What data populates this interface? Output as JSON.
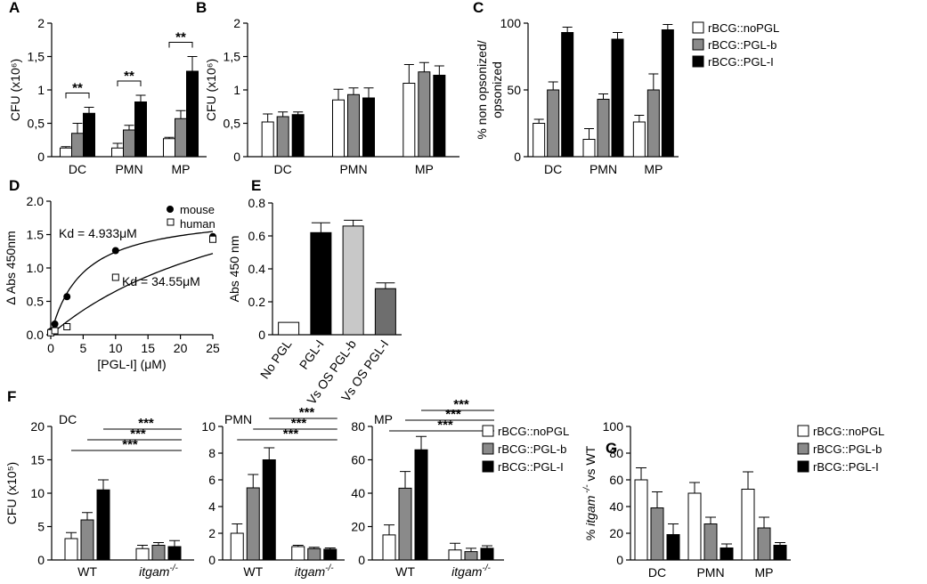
{
  "figure": {
    "colors": {
      "noPGL": "#ffffff",
      "PGLb": "#8a8a8a",
      "PGLI": "#000000",
      "OSb": "#c8c8c8",
      "OSI": "#6e6e6e"
    }
  },
  "chart_data": [
    {
      "id": "A",
      "type": "bar",
      "panel_label": "A",
      "ylabel": "CFU (x10⁶)",
      "ylim": [
        0,
        2
      ],
      "yticks": [
        0,
        0.5,
        1,
        1.5,
        2
      ],
      "ytick_labels": [
        "0",
        "0,5",
        "1",
        "1,5",
        "2"
      ],
      "categories": [
        "DC",
        "PMN",
        "MP"
      ],
      "series": [
        {
          "name": "rBCG::noPGL",
          "color": "#ffffff",
          "values": [
            0.13,
            0.13,
            0.27
          ],
          "errors": [
            0.02,
            0.07,
            0.02
          ]
        },
        {
          "name": "rBCG::PGL-b",
          "color": "#8a8a8a",
          "values": [
            0.35,
            0.4,
            0.57
          ],
          "errors": [
            0.15,
            0.07,
            0.12
          ]
        },
        {
          "name": "rBCG::PGL-I",
          "color": "#000000",
          "values": [
            0.65,
            0.82,
            1.28
          ],
          "errors": [
            0.09,
            0.1,
            0.22
          ]
        }
      ],
      "significance": [
        {
          "cat": 0,
          "from": 0,
          "to": 2,
          "label": "**"
        },
        {
          "cat": 1,
          "from": 0,
          "to": 2,
          "label": "**"
        },
        {
          "cat": 2,
          "from": 0,
          "to": 2,
          "label": "**"
        }
      ]
    },
    {
      "id": "B",
      "type": "bar",
      "panel_label": "B",
      "ylabel": "CFU (x10⁶)",
      "ylim": [
        0,
        2
      ],
      "yticks": [
        0,
        0.5,
        1,
        1.5,
        2
      ],
      "ytick_labels": [
        "0",
        "0,5",
        "1",
        "1,5",
        "2"
      ],
      "categories": [
        "DC",
        "PMN",
        "MP"
      ],
      "series": [
        {
          "name": "rBCG::noPGL",
          "color": "#ffffff",
          "values": [
            0.52,
            0.85,
            1.1
          ],
          "errors": [
            0.12,
            0.16,
            0.28
          ]
        },
        {
          "name": "rBCG::PGL-b",
          "color": "#8a8a8a",
          "values": [
            0.6,
            0.93,
            1.27
          ],
          "errors": [
            0.07,
            0.1,
            0.14
          ]
        },
        {
          "name": "rBCG::PGL-I",
          "color": "#000000",
          "values": [
            0.63,
            0.88,
            1.22
          ],
          "errors": [
            0.04,
            0.15,
            0.14
          ]
        }
      ]
    },
    {
      "id": "C",
      "type": "bar",
      "panel_label": "C",
      "ylabel": "% non opsonized/ opsonized",
      "ylabel_lines": [
        "% non opsonized/",
        "opsonized"
      ],
      "ylim": [
        0,
        100
      ],
      "yticks": [
        0,
        50,
        100
      ],
      "ytick_labels": [
        "0",
        "50",
        "100"
      ],
      "categories": [
        "DC",
        "PMN",
        "MP"
      ],
      "series": [
        {
          "name": "rBCG::noPGL",
          "color": "#ffffff",
          "values": [
            25,
            13,
            26
          ],
          "errors": [
            3,
            8,
            5
          ]
        },
        {
          "name": "rBCG::PGL-b",
          "color": "#8a8a8a",
          "values": [
            50,
            43,
            50
          ],
          "errors": [
            6,
            4,
            12
          ]
        },
        {
          "name": "rBCG::PGL-I",
          "color": "#000000",
          "values": [
            93,
            88,
            95
          ],
          "errors": [
            4,
            5,
            4
          ]
        }
      ],
      "legend": [
        "rBCG::noPGL",
        "rBCG::PGL-b",
        "rBCG::PGL-I"
      ]
    },
    {
      "id": "D",
      "type": "scatter",
      "panel_label": "D",
      "xlabel": "[PGL-I] (μM)",
      "ylabel": "Δ Abs 450nm",
      "xlim": [
        0,
        25
      ],
      "ylim": [
        0,
        2
      ],
      "xticks": [
        0,
        5,
        10,
        15,
        20,
        25
      ],
      "xtick_labels": [
        "0",
        "5",
        "10",
        "15",
        "20",
        "25"
      ],
      "yticks": [
        0,
        0.5,
        1,
        1.5,
        2
      ],
      "ytick_labels": [
        "0.0",
        "0.5",
        "1.0",
        "1.5",
        "2.0"
      ],
      "series": [
        {
          "name": "mouse",
          "marker": "filled-circle",
          "x": [
            0,
            0.63,
            2.5,
            10,
            25
          ],
          "y": [
            0.05,
            0.16,
            0.57,
            1.26,
            1.47
          ],
          "fit_bmax": 1.85,
          "fit_kd": 4.933
        },
        {
          "name": "human",
          "marker": "open-square",
          "x": [
            0,
            0.63,
            2.5,
            10,
            25
          ],
          "y": [
            0.03,
            0.06,
            0.12,
            0.86,
            1.43
          ],
          "fit_bmax": 2.9,
          "fit_kd": 34.55
        }
      ],
      "annotations": [
        "Kd = 4.933μM",
        "Kd = 34.55μM"
      ]
    },
    {
      "id": "E",
      "type": "bar",
      "panel_label": "E",
      "ylabel": "Abs 450 nm",
      "ylim": [
        0,
        0.8
      ],
      "yticks": [
        0,
        0.2,
        0.4,
        0.6,
        0.8
      ],
      "ytick_labels": [
        "0",
        "0.2",
        "0.4",
        "0.6",
        "0.8"
      ],
      "categories": [
        "No PGL",
        "PGL-I",
        "Vs OS PGL-b",
        "Vs OS PGL-I"
      ],
      "values": [
        0.075,
        0.62,
        0.66,
        0.28
      ],
      "errors": [
        0,
        0.06,
        0.035,
        0.035
      ],
      "colors": [
        "#ffffff",
        "#000000",
        "#c8c8c8",
        "#6e6e6e"
      ]
    },
    {
      "id": "F-DC",
      "type": "bar",
      "panel_label": "F",
      "subtitle": "DC",
      "ylabel": "CFU (x10⁵)",
      "ylim": [
        0,
        20
      ],
      "yticks": [
        0,
        5,
        10,
        15,
        20
      ],
      "ytick_labels": [
        "0",
        "5",
        "10",
        "15",
        "20"
      ],
      "categories": [
        "WT",
        "itgam-/-"
      ],
      "category_labels": [
        {
          "main": "WT"
        },
        {
          "main": "itgam",
          "sup": "-/-"
        }
      ],
      "series": [
        {
          "name": "rBCG::noPGL",
          "color": "#ffffff",
          "values": [
            3.2,
            1.7
          ],
          "errors": [
            0.9,
            0.5
          ]
        },
        {
          "name": "rBCG::PGL-b",
          "color": "#8a8a8a",
          "values": [
            6.0,
            2.2
          ],
          "errors": [
            1.1,
            0.4
          ]
        },
        {
          "name": "rBCG::PGL-I",
          "color": "#000000",
          "values": [
            10.5,
            2.0
          ],
          "errors": [
            1.5,
            0.9
          ]
        }
      ],
      "significance": [
        {
          "series": 0,
          "label": "***"
        },
        {
          "series": 1,
          "label": "***"
        },
        {
          "series": 2,
          "label": "***"
        }
      ]
    },
    {
      "id": "F-PMN",
      "type": "bar",
      "subtitle": "PMN",
      "ylim": [
        0,
        10
      ],
      "yticks": [
        0,
        2,
        4,
        6,
        8,
        10
      ],
      "ytick_labels": [
        "0",
        "2",
        "4",
        "6",
        "8",
        "10"
      ],
      "categories": [
        "WT",
        "itgam-/-"
      ],
      "category_labels": [
        {
          "main": "WT"
        },
        {
          "main": "itgam",
          "sup": "-/-"
        }
      ],
      "series": [
        {
          "name": "rBCG::noPGL",
          "color": "#ffffff",
          "values": [
            2.0,
            1.0
          ],
          "errors": [
            0.7,
            0.1
          ]
        },
        {
          "name": "rBCG::PGL-b",
          "color": "#8a8a8a",
          "values": [
            5.4,
            0.85
          ],
          "errors": [
            1.0,
            0.1
          ]
        },
        {
          "name": "rBCG::PGL-I",
          "color": "#000000",
          "values": [
            7.5,
            0.8
          ],
          "errors": [
            0.9,
            0.1
          ]
        }
      ],
      "significance": [
        {
          "series": 0,
          "label": "***"
        },
        {
          "series": 1,
          "label": "***"
        },
        {
          "series": 2,
          "label": "***"
        }
      ]
    },
    {
      "id": "F-MP",
      "type": "bar",
      "subtitle": "MP",
      "ylim": [
        0,
        80
      ],
      "yticks": [
        0,
        20,
        40,
        60,
        80
      ],
      "ytick_labels": [
        "0",
        "20",
        "40",
        "60",
        "80"
      ],
      "categories": [
        "WT",
        "itgam-/-"
      ],
      "category_labels": [
        {
          "main": "WT"
        },
        {
          "main": "itgam",
          "sup": "-/-"
        }
      ],
      "series": [
        {
          "name": "rBCG::noPGL",
          "color": "#ffffff",
          "values": [
            15,
            6
          ],
          "errors": [
            6,
            4
          ]
        },
        {
          "name": "rBCG::PGL-b",
          "color": "#8a8a8a",
          "values": [
            43,
            5
          ],
          "errors": [
            10,
            2
          ]
        },
        {
          "name": "rBCG::PGL-I",
          "color": "#000000",
          "values": [
            66,
            7
          ],
          "errors": [
            8,
            1.5
          ]
        }
      ],
      "significance": [
        {
          "series": 0,
          "label": "***"
        },
        {
          "series": 1,
          "label": "***"
        },
        {
          "series": 2,
          "label": "***"
        }
      ],
      "legend": [
        "rBCG::noPGL",
        "rBCG::PGL-b",
        "rBCG::PGL-I"
      ]
    },
    {
      "id": "G",
      "type": "bar",
      "panel_label": "G",
      "ylabel": "% itgam-/- vs WT",
      "ylabel_parts": {
        "pre": "% ",
        "ital": "itgam",
        "sup": " -/-",
        "post": " vs WT"
      },
      "ylim": [
        0,
        100
      ],
      "yticks": [
        0,
        20,
        40,
        60,
        80,
        100
      ],
      "ytick_labels": [
        "0",
        "20",
        "40",
        "60",
        "80",
        "100"
      ],
      "categories": [
        "DC",
        "PMN",
        "MP"
      ],
      "series": [
        {
          "name": "rBCG::noPGL",
          "color": "#ffffff",
          "values": [
            60,
            50,
            53
          ],
          "errors": [
            9,
            8,
            13
          ]
        },
        {
          "name": "rBCG::PGL-b",
          "color": "#8a8a8a",
          "values": [
            39,
            27,
            24
          ],
          "errors": [
            12,
            5,
            8
          ]
        },
        {
          "name": "rBCG::PGL-I",
          "color": "#000000",
          "values": [
            19,
            9,
            11
          ],
          "errors": [
            8,
            3,
            2
          ]
        }
      ],
      "legend": [
        "rBCG::noPGL",
        "rBCG::PGL-b",
        "rBCG::PGL-I"
      ]
    }
  ]
}
